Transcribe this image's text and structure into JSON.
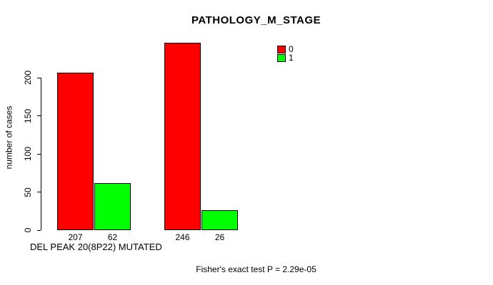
{
  "chart_data": {
    "type": "bar",
    "title": "PATHOLOGY_M_STAGE",
    "xlabel": "DEL PEAK 20(8P22) MUTATED",
    "ylabel": "number of cases",
    "categories": [
      "",
      ""
    ],
    "series": [
      {
        "name": "0",
        "color": "#ff0000",
        "values": [
          207,
          246
        ]
      },
      {
        "name": "1",
        "color": "#00ff00",
        "values": [
          62,
          26
        ]
      }
    ],
    "yticks": [
      0,
      50,
      100,
      150,
      200
    ],
    "ylim": [
      0,
      250
    ],
    "grid": false,
    "bar_value_labels_shown": true,
    "legend": {
      "position": "top-right",
      "entries": [
        "0",
        "1"
      ]
    },
    "annotation": "Fisher's exact test P = 2.29e-05",
    "colors": {
      "bar_border": "#000000",
      "axis": "#000000",
      "background": "#ffffff",
      "text": "#000000"
    }
  }
}
